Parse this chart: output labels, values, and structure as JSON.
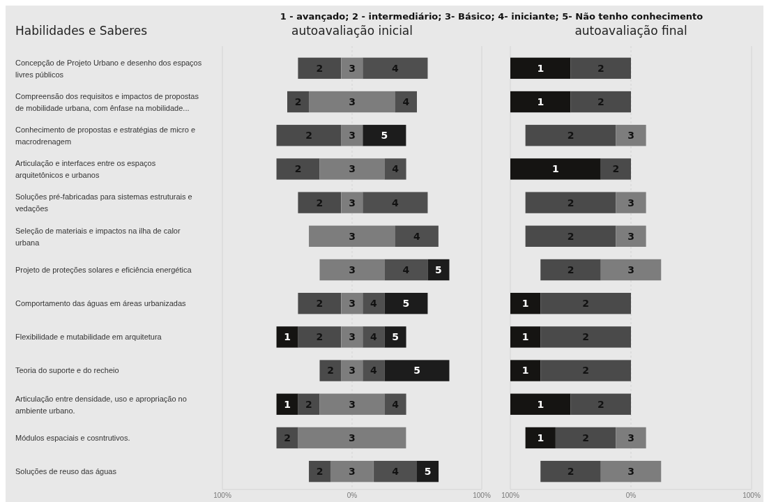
{
  "chart_data": [
    {
      "type": "bar",
      "orientation": "horizontal",
      "title": "autoavaliação inicial",
      "annotations": [
        "1 - avançado;  2 - intermediário;  3- Básico; 4- iniciante; 5- Não tenho conhecimento",
        "Habilidades e Saberes"
      ],
      "categories": [
        "Concepção de Projeto Urbano e desenho dos espaços livres públicos",
        "Compreensão dos requisitos e impactos de propostas de mobilidade urbana, com ênfase na mobilidade...",
        "Conhecimento de propostas e estratégias de micro e macrodrenagem",
        "Articulação e interfaces entre os espaços arquitetônicos e urbanos",
        "Soluções pré-fabricadas para sistemas estruturais e vedações",
        "Seleção de materiais e impactos na ilha de calor urbana",
        "Projeto de proteções solares e eficiência energética",
        "Comportamento das águas em áreas urbanizadas",
        "Flexibilidade e mutabilidade em arquitetura",
        "Teoria do suporte e do recheio",
        "Articulação entre densidade, uso e apropriação no ambiente urbano.",
        "Módulos espaciais e cosntrutivos.",
        "Soluções de reuso das águas"
      ],
      "series": [
        {
          "name": "1",
          "color": "#151412",
          "values": [
            null,
            null,
            null,
            null,
            null,
            null,
            null,
            null,
            16.7,
            null,
            16.7,
            null,
            null
          ],
          "base": [
            null,
            null,
            null,
            null,
            null,
            null,
            null,
            null,
            -58.3,
            null,
            -58.3,
            null,
            null
          ]
        },
        {
          "name": "2",
          "color": "#4a4a4a",
          "values": [
            33.3,
            16.7,
            50,
            33.3,
            33.3,
            null,
            null,
            33.3,
            33.3,
            16.7,
            16.7,
            16.7,
            16.7
          ],
          "base": [
            -41.7,
            -50,
            -58.3,
            -58.3,
            -41.7,
            null,
            null,
            -41.7,
            -41.7,
            -25,
            -41.7,
            -58.3,
            -33.3
          ]
        },
        {
          "name": "3",
          "color": "#7d7d7d",
          "values": [
            16.7,
            66.7,
            16.7,
            50,
            16.7,
            66.7,
            50,
            16.7,
            16.7,
            16.7,
            50,
            83.3,
            33.3
          ],
          "base": [
            -8.3,
            -33.3,
            -8.3,
            -25,
            -8.3,
            -33.3,
            -25,
            -8.3,
            -8.3,
            -8.3,
            -25,
            -41.7,
            -16.7
          ]
        },
        {
          "name": "4",
          "color": "#4f4f4f",
          "values": [
            50,
            16.7,
            null,
            16.7,
            50,
            33.3,
            33.3,
            16.7,
            16.7,
            16.7,
            16.7,
            null,
            33.3
          ],
          "base": [
            8.3,
            33.3,
            null,
            25,
            8.3,
            33.3,
            25,
            8.3,
            8.3,
            8.3,
            25,
            null,
            16.7
          ]
        },
        {
          "name": "5",
          "color": "#1c1c1c",
          "values": [
            null,
            null,
            33.3,
            null,
            null,
            null,
            16.7,
            33.3,
            16.7,
            50,
            null,
            null,
            16.7
          ],
          "base": [
            null,
            null,
            8.3,
            null,
            null,
            null,
            58.3,
            25,
            25,
            25,
            null,
            null,
            50
          ]
        }
      ],
      "xlim": [
        -100,
        100
      ],
      "xticks": [
        {
          "value": -100,
          "label": "100%"
        },
        {
          "value": 0,
          "label": "0%"
        },
        {
          "value": 100,
          "label": "100%"
        }
      ],
      "grid": "x"
    },
    {
      "type": "bar",
      "orientation": "horizontal",
      "title": "autoavaliação final",
      "tick_labels": "x",
      "categories": [
        "Concepção de Projeto Urbano e desenho dos espaços livres públicos",
        "Compreensão dos requisitos e impactos de propostas de mobilidade urbana, com ênfase na mobilidade...",
        "Conhecimento de propostas e estratégias de micro e macrodrenagem",
        "Articulação e interfaces entre os espaços arquitetônicos e urbanos",
        "Soluções pré-fabricadas para sistemas estruturais e vedações",
        "Seleção de materiais e impactos na ilha de calor urbana",
        "Projeto de proteções solares e eficiência energética",
        "Comportamento das águas em áreas urbanizadas",
        "Flexibilidade e mutabilidade em arquitetura",
        "Teoria do suporte e do recheio",
        "Articulação entre densidade, uso e apropriação no ambiente urbano.",
        "Módulos espaciais e cosntrutivos.",
        "Soluções de reuso das águas"
      ],
      "series": [
        {
          "name": "1",
          "color": "#151412",
          "values": [
            50,
            50,
            null,
            75,
            null,
            null,
            null,
            25,
            25,
            25,
            50,
            25,
            null
          ],
          "base": [
            -100,
            -100,
            null,
            -100,
            null,
            null,
            null,
            -100,
            -100,
            -100,
            -100,
            -87.5,
            null
          ]
        },
        {
          "name": "2",
          "color": "#4a4a4a",
          "values": [
            50,
            50,
            75,
            25,
            75,
            75,
            50,
            75,
            75,
            75,
            50,
            50,
            50
          ],
          "base": [
            -50,
            -50,
            -87.5,
            -25,
            -87.5,
            -87.5,
            -75,
            -75,
            -75,
            -75,
            -50,
            -62.5,
            -75
          ]
        },
        {
          "name": "3",
          "color": "#7d7d7d",
          "values": [
            null,
            null,
            25,
            null,
            25,
            25,
            50,
            null,
            null,
            null,
            null,
            25,
            50
          ],
          "base": [
            null,
            null,
            -12.5,
            null,
            -12.5,
            -12.5,
            -25,
            null,
            null,
            null,
            null,
            -12.5,
            -25
          ]
        }
      ],
      "xlim": [
        -100,
        100
      ],
      "xticks": [
        {
          "value": -100,
          "label": "100%"
        },
        {
          "value": 0,
          "label": "0%"
        },
        {
          "value": 100,
          "label": "100%"
        }
      ],
      "grid": "x"
    }
  ]
}
